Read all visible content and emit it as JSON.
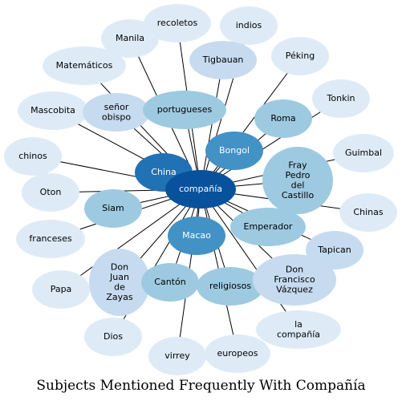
{
  "title": "Subjects Mentioned Frequently With Compañía",
  "center": "compañía",
  "colors": {
    "pale": "#deebf7",
    "light": "#c6dbef",
    "mid": "#9ecae1",
    "medium": "#4292c6",
    "dark": "#2171b5",
    "darkest": "#08519c"
  },
  "nodes": [
    {
      "id": "recoletos",
      "label": "recoletos",
      "tone": "pale"
    },
    {
      "id": "indios",
      "label": "indios",
      "tone": "pale"
    },
    {
      "id": "manila",
      "label": "Manila",
      "tone": "pale"
    },
    {
      "id": "tigbauan",
      "label": "Tigbauan",
      "tone": "light"
    },
    {
      "id": "peking",
      "label": "Péking",
      "tone": "pale"
    },
    {
      "id": "matematicos",
      "label": "Matemáticos",
      "tone": "pale"
    },
    {
      "id": "tonkin",
      "label": "Tonkin",
      "tone": "pale"
    },
    {
      "id": "mascobita",
      "label": "Mascobita",
      "tone": "pale"
    },
    {
      "id": "senor-obispo",
      "label": "señor obispo",
      "tone": "light"
    },
    {
      "id": "portugueses",
      "label": "portugueses",
      "tone": "mid"
    },
    {
      "id": "roma",
      "label": "Roma",
      "tone": "mid"
    },
    {
      "id": "guimbal",
      "label": "Guimbal",
      "tone": "pale"
    },
    {
      "id": "chinos",
      "label": "chinos",
      "tone": "pale"
    },
    {
      "id": "bongol",
      "label": "Bongol",
      "tone": "medium"
    },
    {
      "id": "fray-pedro",
      "label": "Fray Pedro del Castillo",
      "tone": "mid"
    },
    {
      "id": "china",
      "label": "China",
      "tone": "dark"
    },
    {
      "id": "oton",
      "label": "Oton",
      "tone": "pale"
    },
    {
      "id": "siam",
      "label": "Siam",
      "tone": "mid"
    },
    {
      "id": "chinas",
      "label": "Chinas",
      "tone": "pale"
    },
    {
      "id": "emperador",
      "label": "Emperador",
      "tone": "mid"
    },
    {
      "id": "franceses",
      "label": "franceses",
      "tone": "pale"
    },
    {
      "id": "macao",
      "label": "Macao",
      "tone": "medium"
    },
    {
      "id": "tapican",
      "label": "Tapican",
      "tone": "light"
    },
    {
      "id": "don-juan",
      "label": "Don Juan de Zayas",
      "tone": "light"
    },
    {
      "id": "papa",
      "label": "Papa",
      "tone": "pale"
    },
    {
      "id": "canton",
      "label": "Cantón",
      "tone": "mid"
    },
    {
      "id": "religiosos",
      "label": "religiosos",
      "tone": "mid"
    },
    {
      "id": "don-francisco",
      "label": "Don Francisco Vázquez",
      "tone": "light"
    },
    {
      "id": "dios",
      "label": "Dios",
      "tone": "pale"
    },
    {
      "id": "la-compania",
      "label": "la compañía",
      "tone": "pale"
    },
    {
      "id": "virrey",
      "label": "virrey",
      "tone": "pale"
    },
    {
      "id": "europeos",
      "label": "europeos",
      "tone": "pale"
    }
  ]
}
